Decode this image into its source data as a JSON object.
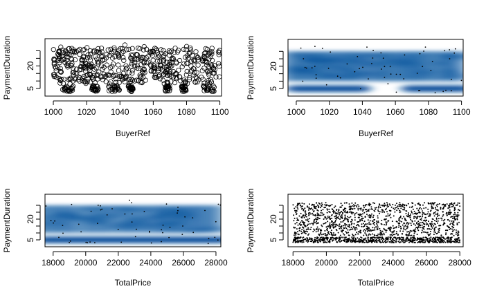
{
  "chart_data": [
    {
      "type": "scatter",
      "style": "open-circles",
      "xlabel": "BuyerRef",
      "ylabel": "PaymentDuration",
      "xlim": [
        995,
        1101
      ],
      "ylim": [
        0,
        38
      ],
      "xticks": [
        1000,
        1020,
        1040,
        1060,
        1080,
        1100
      ],
      "xtick_labels": [
        "1000",
        "1020",
        "1040",
        "1060",
        "1080",
        "1100"
      ],
      "yticks": [
        5,
        10,
        15,
        20,
        25,
        30
      ],
      "ytick_labels": [
        "5",
        "",
        "",
        "20",
        "",
        ""
      ],
      "x_range": [
        1000,
        1100
      ],
      "y_range": [
        2,
        34
      ],
      "low_band_y": [
        3,
        7
      ],
      "main_band_y": [
        8,
        34
      ]
    },
    {
      "type": "heatmap",
      "style": "smoothed-density",
      "color": "#08519c",
      "xlabel": "BuyerRef",
      "ylabel": "PaymentDuration",
      "xlim": [
        995,
        1101
      ],
      "ylim": [
        0,
        38
      ],
      "xticks": [
        1000,
        1020,
        1040,
        1060,
        1080,
        1100
      ],
      "xtick_labels": [
        "1000",
        "1020",
        "1040",
        "1060",
        "1080",
        "1100"
      ],
      "yticks": [
        5,
        10,
        15,
        20,
        25,
        30
      ],
      "ytick_labels": [
        "5",
        "",
        "",
        "20",
        "",
        ""
      ],
      "x_range": [
        1000,
        1100
      ],
      "y_range": [
        2,
        34
      ],
      "low_band_y": [
        3,
        7
      ],
      "main_band_y": [
        8,
        34
      ]
    },
    {
      "type": "heatmap",
      "style": "smoothed-density",
      "color": "#08519c",
      "xlabel": "TotalPrice",
      "ylabel": "PaymentDuration",
      "xlim": [
        17500,
        28300
      ],
      "ylim": [
        0,
        38
      ],
      "xticks": [
        18000,
        20000,
        22000,
        24000,
        26000,
        28000
      ],
      "xtick_labels": [
        "18000",
        "20000",
        "22000",
        "24000",
        "26000",
        "28000"
      ],
      "yticks": [
        5,
        10,
        15,
        20,
        25,
        30
      ],
      "ytick_labels": [
        "5",
        "",
        "",
        "20",
        "",
        ""
      ],
      "x_range": [
        17500,
        28300
      ],
      "y_range": [
        2,
        34
      ],
      "low_band_y": [
        3,
        7
      ],
      "main_band_y": [
        8,
        34
      ]
    },
    {
      "type": "scatter",
      "style": "small-dots",
      "xlabel": "TotalPrice",
      "ylabel": "PaymentDuration",
      "xlim": [
        17700,
        28200
      ],
      "ylim": [
        0,
        38
      ],
      "xticks": [
        18000,
        20000,
        22000,
        24000,
        26000,
        28000
      ],
      "xtick_labels": [
        "18000",
        "20000",
        "22000",
        "24000",
        "26000",
        "28000"
      ],
      "yticks": [
        5,
        10,
        15,
        20,
        25,
        30
      ],
      "ytick_labels": [
        "5",
        "",
        "",
        "20",
        "",
        ""
      ],
      "x_range": [
        18000,
        28000
      ],
      "y_range": [
        2,
        34
      ],
      "low_band_y": [
        3,
        7
      ],
      "main_band_y": [
        8,
        34
      ]
    }
  ]
}
